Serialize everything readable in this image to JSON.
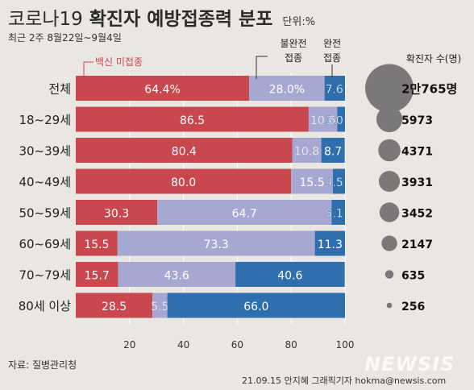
{
  "header": {
    "title_part1": "코로나19",
    "title_part2": "확진자 예방접종력 분포",
    "unit": "단위:%",
    "subtitle": "최근 2주 8월22일~9월4일"
  },
  "footer": {
    "source": "자료: 질병관리청",
    "credit": "21.09.15 안지혜 그래픽기자 hokma@newsis.com",
    "watermark": "NEWSIS"
  },
  "bubble_legend_title": "확진자 수(명)",
  "colors": {
    "unvaccinated": "#c9474f",
    "partial": "#a6a8d2",
    "full": "#2f6fae",
    "bubble": "#7a7878",
    "background": "#eae7e2"
  },
  "chart_data": {
    "type": "bar",
    "orientation": "horizontal",
    "stacked": true,
    "categories": [
      "전체",
      "18~29세",
      "30~39세",
      "40~49세",
      "50~59세",
      "60~69세",
      "70~79세",
      "80세 이상"
    ],
    "series": [
      {
        "name": "백신 미접종",
        "values": [
          64.4,
          86.5,
          80.4,
          80.0,
          30.3,
          15.5,
          15.7,
          28.5
        ],
        "labels": [
          "64.4%",
          "86.5",
          "80.4",
          "80.0",
          "30.3",
          "15.5",
          "15.7",
          "28.5"
        ]
      },
      {
        "name": "불완전 접종",
        "values": [
          28.0,
          10.6,
          10.8,
          15.5,
          64.7,
          73.3,
          43.6,
          5.5
        ],
        "labels": [
          "28.0%",
          "10.6",
          "10.8",
          "15.5",
          "64.7",
          "73.3",
          "43.6",
          "5.5"
        ]
      },
      {
        "name": "완전 접종",
        "values": [
          7.6,
          3.0,
          8.7,
          4.5,
          5.1,
          11.3,
          40.6,
          66.0
        ],
        "labels": [
          "7.6",
          "3.0",
          "8.7",
          "4.5",
          "5.1",
          "11.3",
          "40.6",
          "66.0"
        ]
      }
    ],
    "series_callout_labels": [
      "백신 미접종",
      "불완전\n접종",
      "완전\n접종"
    ],
    "confirmed_cases": [
      20765,
      5973,
      4371,
      3931,
      3452,
      2147,
      635,
      256
    ],
    "confirmed_case_labels": [
      "2만765명",
      "5973",
      "4371",
      "3931",
      "3452",
      "2147",
      "635",
      "256"
    ],
    "xlim": [
      0,
      100
    ],
    "xticks": [
      20,
      40,
      60,
      80,
      100
    ]
  }
}
